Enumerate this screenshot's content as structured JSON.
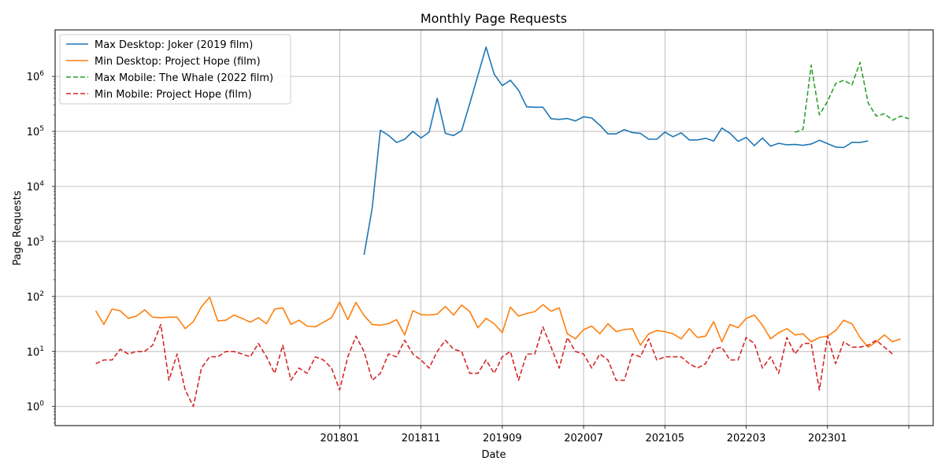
{
  "chart_data": {
    "type": "line",
    "title": "Monthly Page Requests",
    "xlabel": "Date",
    "ylabel": "Page Requests",
    "y_scale": "log",
    "ylim": [
      0.45,
      7000000
    ],
    "y_ticks": [
      1,
      10,
      100,
      1000,
      10000,
      100000,
      1000000
    ],
    "y_tick_labels": [
      [
        "10",
        "0"
      ],
      [
        "10",
        "1"
      ],
      [
        "10",
        "2"
      ],
      [
        "10",
        "3"
      ],
      [
        "10",
        "4"
      ],
      [
        "10",
        "5"
      ],
      [
        "10",
        "6"
      ]
    ],
    "x_start": "2015-07",
    "x_tick_labels": [
      "201801",
      "201811",
      "201909",
      "202007",
      "202105",
      "202203",
      "202301",
      ""
    ],
    "x_tick_dates": [
      "2018-01",
      "2018-11",
      "2019-09",
      "2020-07",
      "2021-05",
      "2022-03",
      "2023-01",
      "2023-11"
    ],
    "x_lim": [
      "2015-02",
      "2024-02"
    ],
    "grid": true,
    "legend_location": "top-left",
    "series": [
      {
        "name": "Max Desktop: Joker (2019 film)",
        "color": "#1f77b4",
        "dash": "solid",
        "start": "2018-04",
        "values": [
          570,
          4000,
          105000,
          85000,
          63000,
          72000,
          100000,
          76000,
          97000,
          400000,
          92000,
          84000,
          103000,
          320000,
          1050000,
          3400000,
          1100000,
          680000,
          850000,
          560000,
          280000,
          275000,
          275000,
          170000,
          165000,
          172000,
          155000,
          185000,
          175000,
          130000,
          90000,
          90000,
          108000,
          95000,
          92000,
          72000,
          72000,
          97000,
          80000,
          94000,
          70000,
          70000,
          75000,
          67000,
          115000,
          93000,
          66000,
          78000,
          55000,
          76000,
          54000,
          61000,
          57000,
          58000,
          56000,
          59000,
          69000,
          60000,
          52000,
          51000,
          63000,
          63000,
          67000
        ]
      },
      {
        "name": "Min Desktop: Project Hope (film)",
        "color": "#ff7f0e",
        "dash": "solid",
        "start": "2015-07",
        "values": [
          55,
          31,
          59,
          55,
          40,
          44,
          57,
          42,
          41,
          42,
          42,
          26,
          35,
          65,
          97,
          36,
          37,
          46,
          40,
          34,
          41,
          32,
          59,
          62,
          31,
          37,
          29,
          28,
          34,
          41,
          79,
          38,
          78,
          45,
          31,
          30,
          32,
          38,
          20,
          55,
          47,
          46,
          48,
          66,
          46,
          70,
          53,
          27,
          40,
          32,
          22,
          64,
          44,
          49,
          53,
          71,
          54,
          62,
          21,
          17,
          25,
          29,
          21,
          32,
          23,
          25,
          26,
          13,
          21,
          24,
          23,
          21,
          17,
          26,
          18,
          19,
          35,
          15,
          31,
          27,
          40,
          46,
          30,
          17,
          22,
          26,
          20,
          21,
          15,
          18,
          19,
          24,
          37,
          32,
          18,
          12,
          15,
          20,
          15,
          17
        ]
      },
      {
        "name": "Max Mobile: The Whale (2022 film)",
        "color": "#2ca02c",
        "dash": "dashed",
        "start": "2022-09",
        "values": [
          96000,
          110000,
          1600000,
          200000,
          350000,
          740000,
          850000,
          700000,
          1800000,
          330000,
          190000,
          210000,
          160000,
          190000,
          170000
        ]
      },
      {
        "name": "Min Mobile: Project Hope (film)",
        "color": "#d62728",
        "dash": "dashed",
        "start": "2015-07",
        "values": [
          6,
          7,
          7,
          11,
          9,
          10,
          10,
          13,
          31,
          3,
          9,
          2,
          1,
          5,
          8,
          8,
          10,
          10,
          9,
          8,
          14,
          8,
          4,
          13,
          3,
          5,
          4,
          8,
          7,
          5,
          2,
          8,
          19,
          10,
          3,
          4,
          9,
          8,
          16,
          9,
          7,
          5,
          10,
          16,
          11,
          10,
          4,
          4,
          7,
          4,
          8,
          10,
          3,
          9,
          9,
          28,
          12,
          5,
          18,
          10,
          9,
          5,
          9,
          7,
          3,
          3,
          9,
          8,
          17,
          7,
          8,
          8,
          8,
          6,
          5,
          6,
          11,
          12,
          7,
          7,
          18,
          14,
          5,
          8,
          4,
          18,
          9,
          14,
          14,
          2,
          19,
          6,
          15,
          12,
          12,
          13,
          16,
          12,
          9
        ]
      }
    ]
  }
}
